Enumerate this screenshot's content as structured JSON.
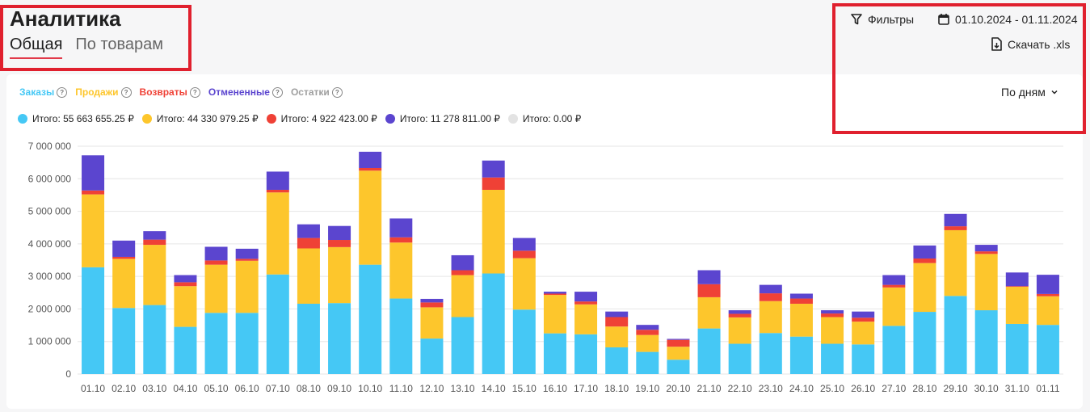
{
  "header": {
    "title": "Аналитика"
  },
  "tabs": [
    {
      "label": "Общая",
      "active": true
    },
    {
      "label": "По товарам",
      "active": false
    }
  ],
  "toolbar": {
    "filters_label": "Фильтры",
    "date_range": "01.10.2024 - 01.11.2024",
    "download_label": "Скачать .xls",
    "granularity_label": "По дням"
  },
  "legend": [
    {
      "label": "Заказы",
      "color": "#45c8f5"
    },
    {
      "label": "Продажи",
      "color": "#fdc62c"
    },
    {
      "label": "Возвраты",
      "color": "#ef4136"
    },
    {
      "label": "Отмененные",
      "color": "#5b45cf"
    },
    {
      "label": "Остатки",
      "color": "#9e9e9e"
    }
  ],
  "totals": [
    {
      "label": "Итого: 55 663 655.25 ₽",
      "color": "#45c8f5"
    },
    {
      "label": "Итого: 44 330 979.25 ₽",
      "color": "#fdc62c"
    },
    {
      "label": "Итого: 4 922 423.00 ₽",
      "color": "#ef4136"
    },
    {
      "label": "Итого: 11 278 811.00 ₽",
      "color": "#5b45cf"
    },
    {
      "label": "Итого: 0.00 ₽",
      "color": "#e3e3e3"
    }
  ],
  "chart_data": {
    "type": "bar",
    "stacked": true,
    "ylim": [
      0,
      7000000
    ],
    "y_ticks": [
      "0",
      "1 000 000",
      "2 000 000",
      "3 000 000",
      "4 000 000",
      "5 000 000",
      "6 000 000",
      "7 000 000"
    ],
    "categories": [
      "01.10",
      "02.10",
      "03.10",
      "04.10",
      "05.10",
      "06.10",
      "07.10",
      "08.10",
      "09.10",
      "10.10",
      "11.10",
      "12.10",
      "13.10",
      "14.10",
      "15.10",
      "16.10",
      "17.10",
      "18.10",
      "19.10",
      "20.10",
      "21.10",
      "22.10",
      "23.10",
      "24.10",
      "25.10",
      "26.10",
      "27.10",
      "28.10",
      "29.10",
      "30.10",
      "31.10",
      "01.11"
    ],
    "series": [
      {
        "name": "Заказы",
        "color": "#45c8f5",
        "values": [
          3280000,
          2030000,
          2120000,
          1450000,
          1880000,
          1880000,
          3060000,
          2160000,
          2180000,
          3360000,
          2320000,
          1090000,
          1750000,
          3090000,
          1980000,
          1250000,
          1220000,
          820000,
          680000,
          440000,
          1400000,
          930000,
          1260000,
          1150000,
          930000,
          910000,
          1480000,
          1910000,
          2400000,
          1960000,
          1540000,
          1510000
        ]
      },
      {
        "name": "Продажи",
        "color": "#fdc62c",
        "values": [
          2240000,
          1510000,
          1850000,
          1250000,
          1480000,
          1600000,
          2520000,
          1700000,
          1720000,
          2890000,
          1720000,
          960000,
          1290000,
          2570000,
          1580000,
          1180000,
          920000,
          640000,
          520000,
          400000,
          960000,
          810000,
          980000,
          1010000,
          820000,
          700000,
          1180000,
          1500000,
          2020000,
          1730000,
          1140000,
          880000
        ]
      },
      {
        "name": "Возвраты",
        "color": "#ef4136",
        "values": [
          120000,
          60000,
          160000,
          120000,
          130000,
          60000,
          80000,
          320000,
          220000,
          80000,
          160000,
          150000,
          150000,
          380000,
          230000,
          40000,
          90000,
          290000,
          160000,
          210000,
          400000,
          110000,
          240000,
          160000,
          110000,
          120000,
          80000,
          140000,
          120000,
          80000,
          20000,
          70000
        ]
      },
      {
        "name": "Отмененные",
        "color": "#5b45cf",
        "values": [
          1080000,
          500000,
          260000,
          220000,
          420000,
          310000,
          560000,
          420000,
          430000,
          500000,
          580000,
          110000,
          460000,
          520000,
          390000,
          60000,
          300000,
          170000,
          150000,
          30000,
          430000,
          110000,
          260000,
          150000,
          100000,
          190000,
          300000,
          400000,
          380000,
          200000,
          420000,
          590000
        ]
      }
    ]
  }
}
